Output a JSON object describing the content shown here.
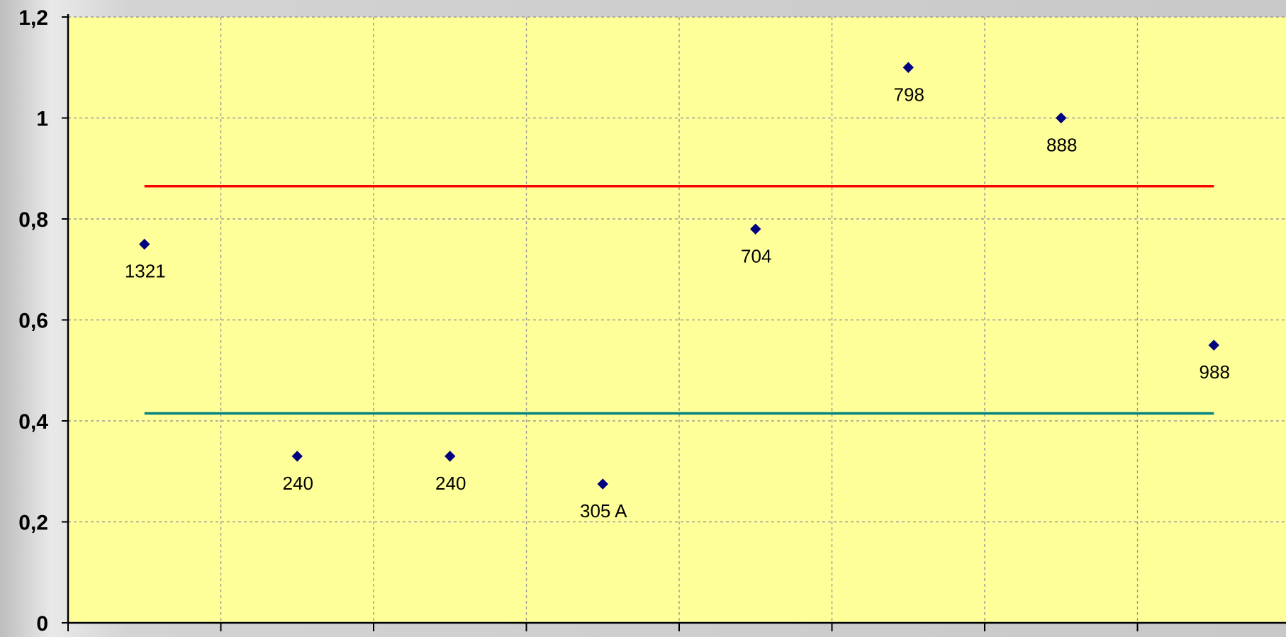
{
  "chart_data": {
    "type": "scatter",
    "title": "",
    "xlabel": "",
    "ylabel": "",
    "ylim": [
      0,
      1.2
    ],
    "y_ticks": [
      {
        "value": 0,
        "label": "0"
      },
      {
        "value": 0.2,
        "label": "0,2"
      },
      {
        "value": 0.4,
        "label": "0,4"
      },
      {
        "value": 0.6,
        "label": "0,6"
      },
      {
        "value": 0.8,
        "label": "0,8"
      },
      {
        "value": 1.0,
        "label": "1"
      },
      {
        "value": 1.2,
        "label": "1,2"
      }
    ],
    "category_count": 8,
    "grid": true,
    "plot_background": "#ffff99",
    "series": [
      {
        "marker": "diamond",
        "color": "#000080",
        "points": [
          {
            "x": 0.5,
            "y": 0.75,
            "label": "1321"
          },
          {
            "x": 1.5,
            "y": 0.33,
            "label": "240"
          },
          {
            "x": 2.5,
            "y": 0.33,
            "label": "240"
          },
          {
            "x": 3.5,
            "y": 0.275,
            "label": "305 A"
          },
          {
            "x": 4.5,
            "y": 0.78,
            "label": "704"
          },
          {
            "x": 5.5,
            "y": 1.1,
            "label": "798"
          },
          {
            "x": 6.5,
            "y": 1.0,
            "label": "888"
          },
          {
            "x": 7.5,
            "y": 0.55,
            "label": "988"
          }
        ]
      }
    ],
    "reference_lines": [
      {
        "y": 0.865,
        "x_from": 0.5,
        "x_to": 7.5,
        "color": "#ff0000"
      },
      {
        "y": 0.415,
        "x_from": 0.5,
        "x_to": 7.5,
        "color": "#008080"
      }
    ]
  }
}
